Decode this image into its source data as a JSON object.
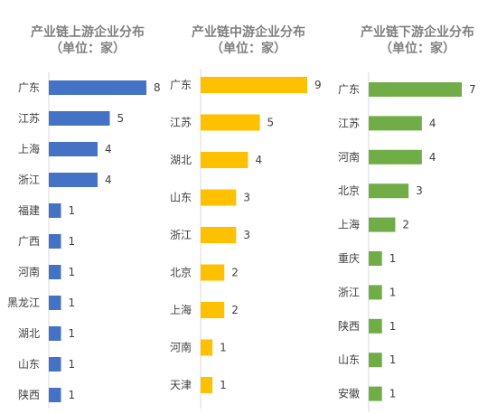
{
  "chart_data": [
    {
      "type": "bar",
      "orientation": "horizontal",
      "title": "产业链上游企业分布",
      "subtitle": "（单位：家）",
      "categories": [
        "广东",
        "江苏",
        "上海",
        "浙江",
        "福建",
        "广西",
        "河南",
        "黑龙江",
        "湖北",
        "山东",
        "陕西"
      ],
      "values": [
        8,
        5,
        4,
        4,
        1,
        1,
        1,
        1,
        1,
        1,
        1
      ],
      "color": "#4472C4",
      "xlim": [
        0,
        8
      ],
      "grid": false,
      "legend": "none"
    },
    {
      "type": "bar",
      "orientation": "horizontal",
      "title": "产业链中游企业分布",
      "subtitle": "（单位：家）",
      "categories": [
        "广东",
        "江苏",
        "湖北",
        "山东",
        "浙江",
        "北京",
        "上海",
        "河南",
        "天津"
      ],
      "values": [
        9,
        5,
        4,
        3,
        3,
        2,
        2,
        1,
        1
      ],
      "color": "#FFC000",
      "xlim": [
        0,
        9
      ],
      "grid": false,
      "legend": "none"
    },
    {
      "type": "bar",
      "orientation": "horizontal",
      "title": "产业链下游企业分布",
      "subtitle": "（单位：家）",
      "categories": [
        "广东",
        "江苏",
        "河南",
        "北京",
        "上海",
        "重庆",
        "浙江",
        "陕西",
        "山东",
        "安徽"
      ],
      "values": [
        7,
        4,
        4,
        3,
        2,
        1,
        1,
        1,
        1,
        1
      ],
      "color": "#70AD47",
      "xlim": [
        0,
        7
      ],
      "grid": false,
      "legend": "none"
    }
  ]
}
